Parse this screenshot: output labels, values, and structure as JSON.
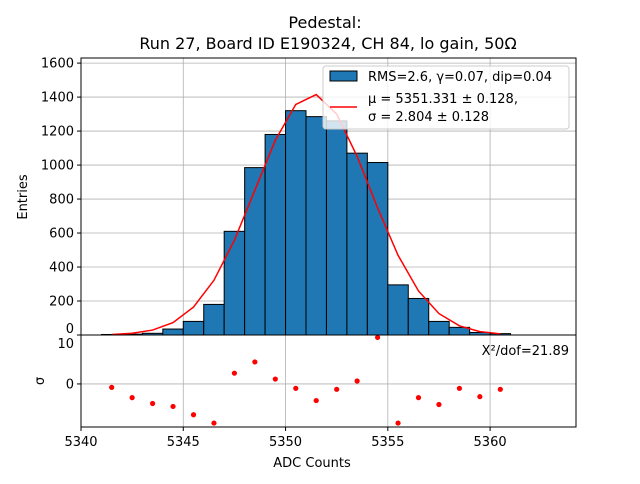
{
  "chart_data": {
    "type": "bar",
    "title_line1": "Pedestal:",
    "title_line2": "Run 27, Board ID E190324, CH 84, lo gain, 50Ω",
    "xlabel": "ADC Counts",
    "ylabel": "Entries",
    "residual_ylabel": "σ",
    "xlim": [
      5340,
      5364.2
    ],
    "ylim": [
      0,
      1630
    ],
    "residual_ylim": [
      -8.8,
      10
    ],
    "grid": true,
    "xticks": [
      5340,
      5345,
      5350,
      5355,
      5360
    ],
    "yticks": [
      0,
      200,
      400,
      600,
      800,
      1000,
      1200,
      1400,
      1600
    ],
    "residual_yticks": [
      0,
      10
    ],
    "bin_edges_start": 5341,
    "bin_width": 1,
    "histogram": [
      3,
      5,
      10,
      35,
      80,
      180,
      610,
      985,
      1180,
      1320,
      1285,
      1260,
      1070,
      1015,
      295,
      215,
      80,
      45,
      15,
      8
    ],
    "fit_x": [
      5341.5,
      5342.5,
      5343.5,
      5344.5,
      5345.5,
      5346.5,
      5347.5,
      5348.5,
      5349.5,
      5350.5,
      5351.5,
      5352.5,
      5353.5,
      5354.5,
      5355.5,
      5356.5,
      5357.5,
      5358.5,
      5359.5,
      5360.5
    ],
    "fit_y": [
      3,
      10,
      29,
      73,
      164,
      322,
      558,
      852,
      1146,
      1357,
      1415,
      1300,
      1051,
      748,
      469,
      259,
      126,
      54,
      20,
      7
    ],
    "residuals": [
      -0.7,
      -2.8,
      -4.0,
      -4.6,
      -6.3,
      -8.0,
      2.2,
      4.5,
      1.0,
      -0.9,
      -3.4,
      -1.1,
      0.6,
      9.5,
      -8.0,
      -2.8,
      -4.2,
      -0.9,
      -2.6,
      -1.1
    ],
    "legend": {
      "position": "top-right",
      "hist_label": "RMS=2.6, γ=0.07, dip=0.04",
      "fit_label_line1": "μ = 5351.331 ± 0.128,",
      "fit_label_line2": "σ = 2.804 ± 0.128"
    },
    "chi2_label": "X²/dof=21.89",
    "colors": {
      "bar": "#1f77b4",
      "fit": "#ff0000",
      "grid": "#b0b0b0"
    }
  }
}
